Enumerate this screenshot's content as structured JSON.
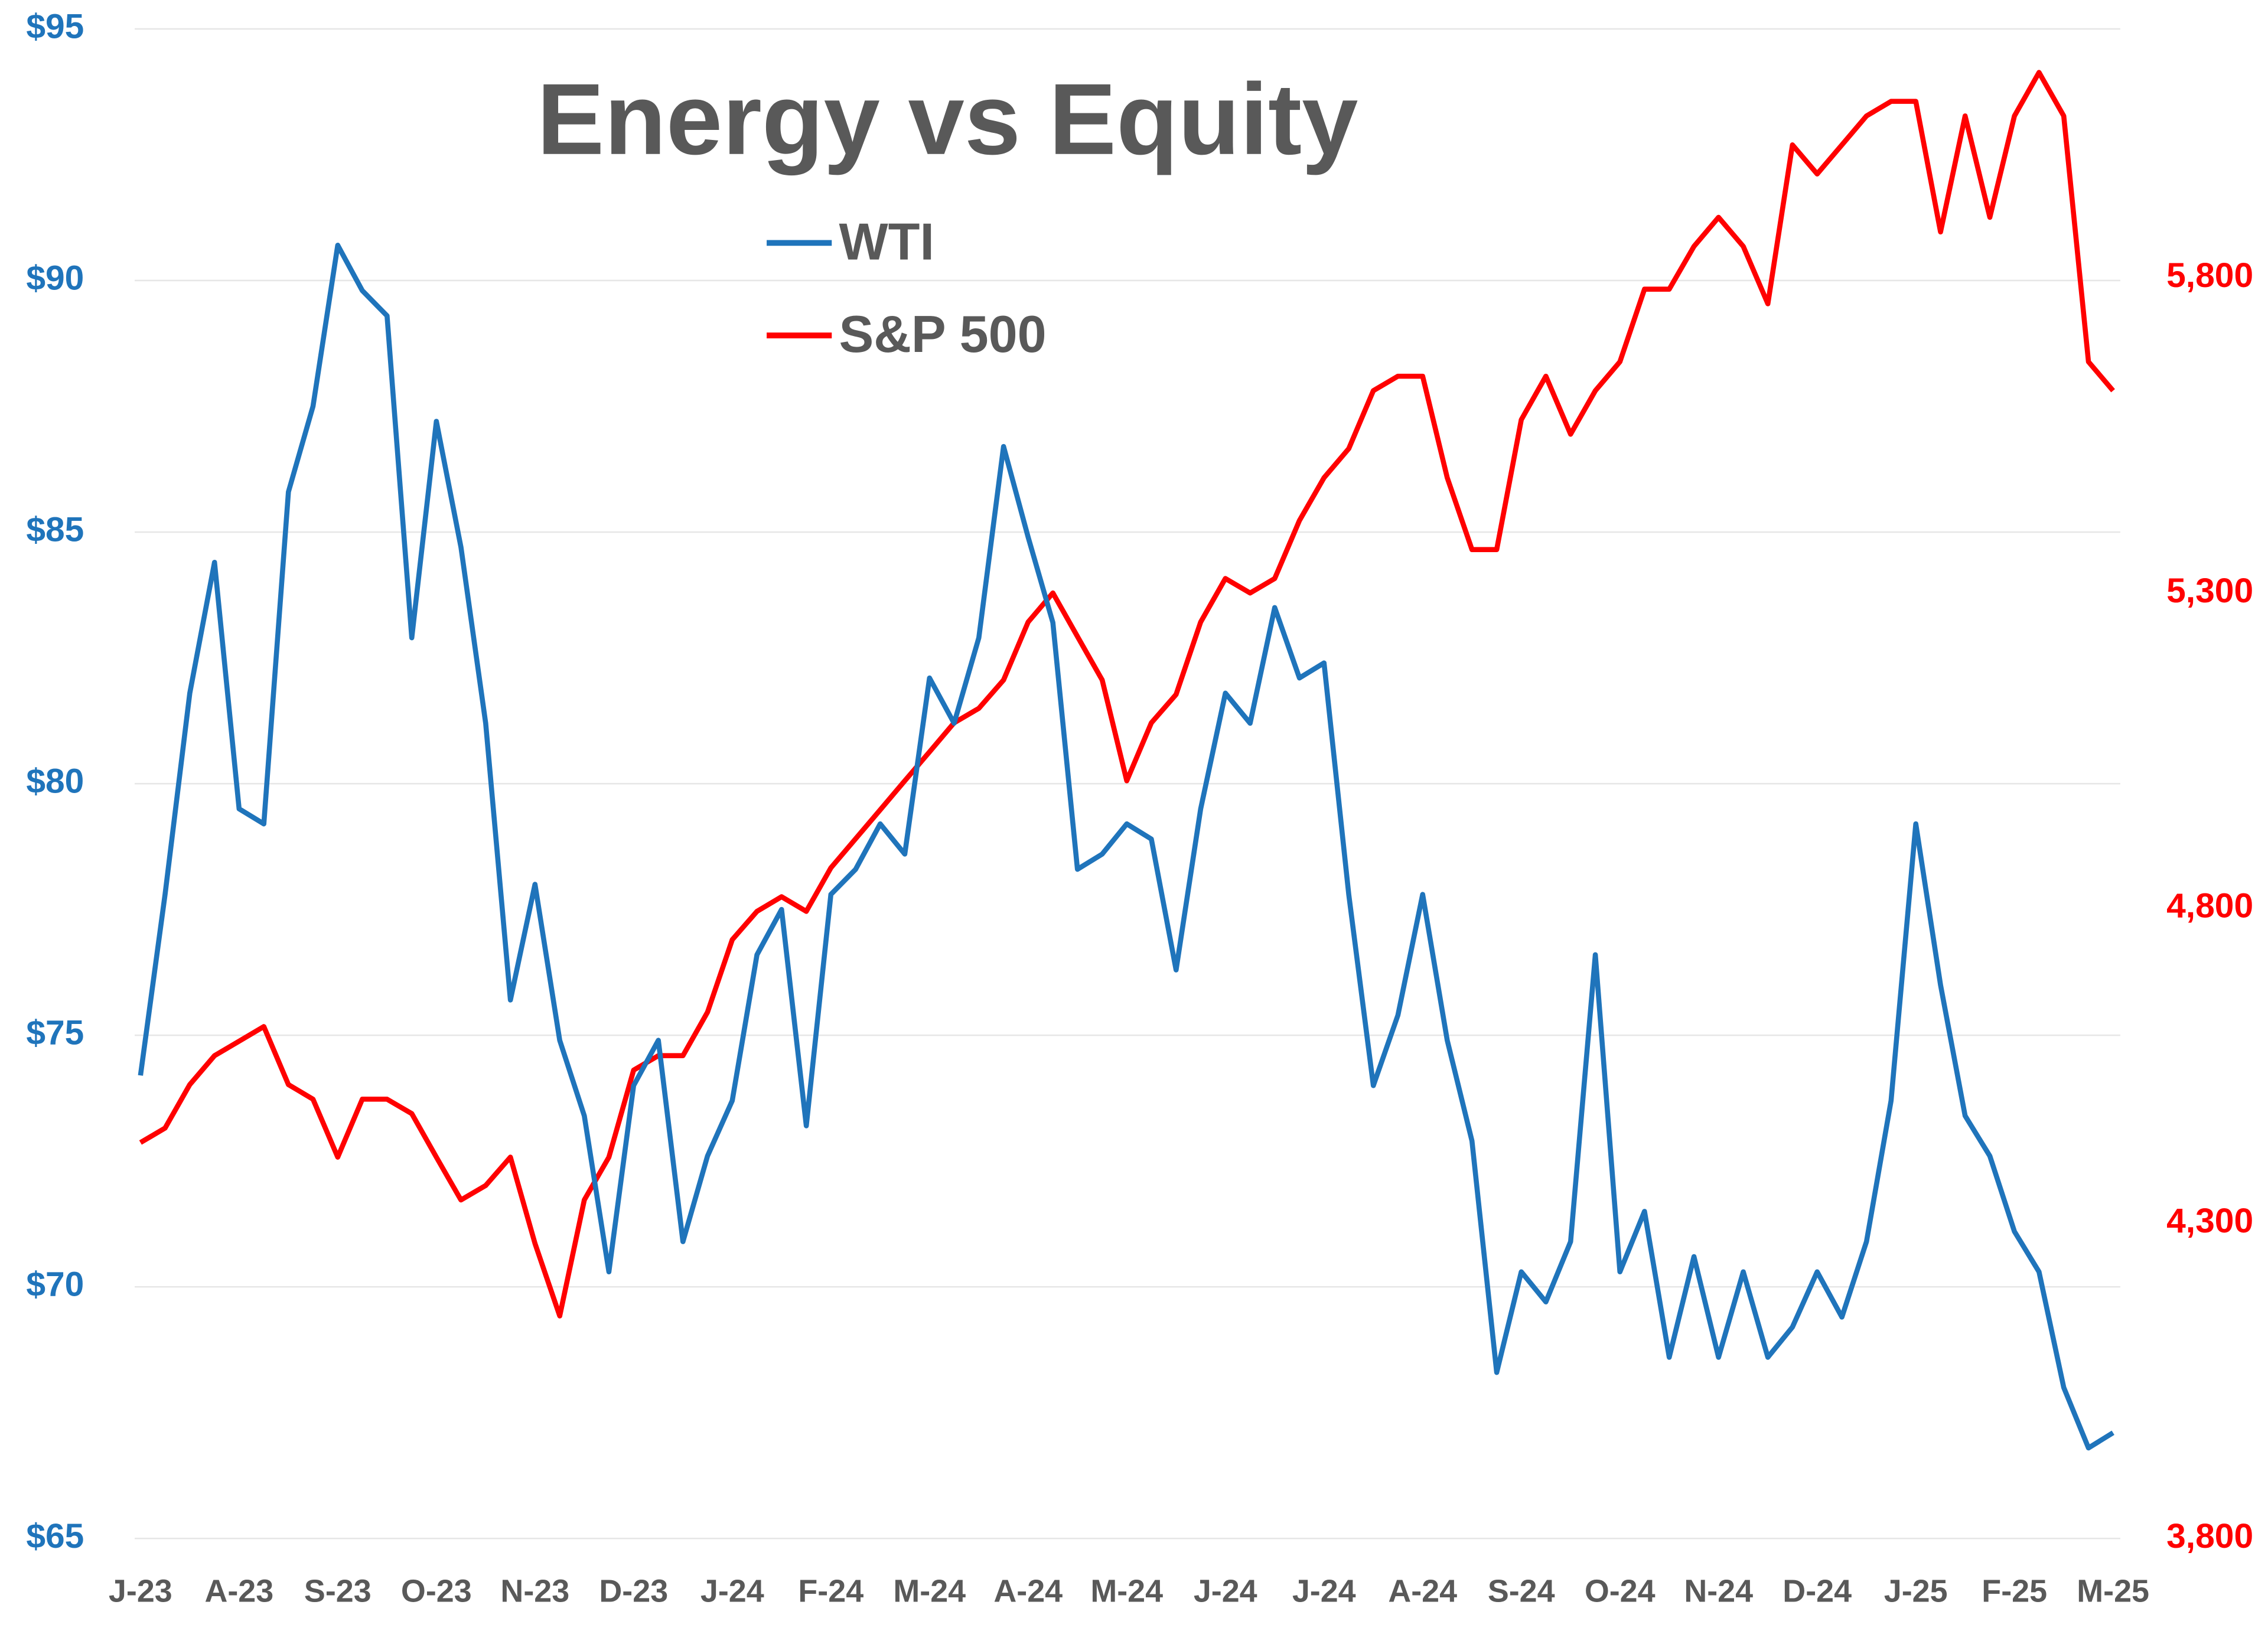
{
  "chart_data": {
    "type": "line",
    "title": "Energy vs Equity",
    "xticks": [
      "J-23",
      "A-23",
      "S-23",
      "O-23",
      "N-23",
      "D-23",
      "J-24",
      "F-24",
      "M-24",
      "A-24",
      "M-24",
      "J-24",
      "J-24",
      "A-24",
      "S-24",
      "O-24",
      "N-24",
      "D-24",
      "J-25",
      "F-25",
      "M-25"
    ],
    "series": [
      {
        "name": "WTI",
        "color": "#1f74bb",
        "axis": "y",
        "values": [
          74.2,
          77.8,
          81.8,
          84.4,
          79.5,
          79.2,
          85.8,
          87.5,
          90.7,
          89.8,
          89.3,
          82.9,
          87.2,
          84.7,
          81.2,
          75.7,
          78.0,
          74.9,
          73.4,
          70.3,
          74.0,
          74.9,
          70.9,
          72.6,
          73.7,
          76.6,
          77.5,
          73.2,
          77.8,
          78.3,
          79.2,
          78.6,
          82.1,
          81.2,
          82.9,
          86.7,
          84.9,
          83.2,
          78.3,
          78.6,
          79.2,
          78.9,
          76.3,
          79.5,
          81.8,
          81.2,
          83.5,
          82.1,
          82.4,
          77.8,
          74.0,
          75.4,
          77.8,
          74.9,
          72.9,
          68.3,
          70.3,
          69.7,
          70.9,
          76.6,
          70.3,
          71.5,
          68.6,
          70.6,
          68.6,
          70.3,
          68.6,
          69.2,
          70.3,
          69.4,
          70.9,
          73.7,
          79.2,
          76.0,
          73.4,
          72.6,
          71.1,
          70.3,
          68.0,
          66.8,
          67.1
        ]
      },
      {
        "name": "S&P 500",
        "color": "#ff0000",
        "axis": "y2",
        "values": [
          4428,
          4451,
          4520,
          4566,
          4589,
          4612,
          4520,
          4497,
          4405,
          4497,
          4497,
          4474,
          4405,
          4337,
          4360,
          4405,
          4268,
          4153,
          4337,
          4405,
          4543,
          4566,
          4566,
          4635,
          4750,
          4795,
          4818,
          4795,
          4864,
          4910,
          4956,
          5002,
          5048,
          5094,
          5117,
          5162,
          5254,
          5300,
          5231,
          5162,
          5002,
          5094,
          5139,
          5254,
          5323,
          5300,
          5323,
          5415,
          5483,
          5529,
          5621,
          5644,
          5644,
          5483,
          5369,
          5369,
          5575,
          5644,
          5552,
          5621,
          5667,
          5782,
          5782,
          5850,
          5896,
          5850,
          5759,
          6011,
          5965,
          6011,
          6057,
          6080,
          6080,
          5873,
          6057,
          5896,
          6057,
          6126,
          6057,
          5667,
          5621
        ]
      }
    ],
    "ylim": [
      65,
      95
    ],
    "yticks": [
      {
        "value": 65,
        "label": "$65"
      },
      {
        "value": 70,
        "label": "$70"
      },
      {
        "value": 75,
        "label": "$75"
      },
      {
        "value": 80,
        "label": "$80"
      },
      {
        "value": 85,
        "label": "$85"
      },
      {
        "value": 90,
        "label": "$90"
      },
      {
        "value": 95,
        "label": "$95"
      }
    ],
    "y2lim": [
      3800,
      6195
    ],
    "y2ticks": [
      {
        "value": 3800,
        "label": "3,800"
      },
      {
        "value": 4300,
        "label": "4,300"
      },
      {
        "value": 4800,
        "label": "4,800"
      },
      {
        "value": 5300,
        "label": "5,300"
      },
      {
        "value": 5800,
        "label": "5,800"
      }
    ],
    "grid": true
  }
}
